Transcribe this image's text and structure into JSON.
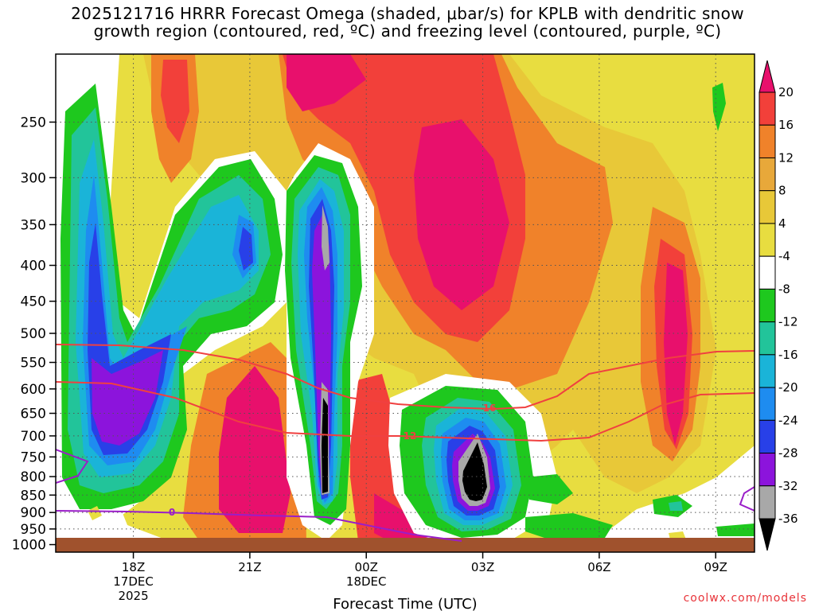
{
  "title": {
    "line1": "2025121716 HRRR Forecast Omega (shaded, μbar/s) for KPLB with dendritic snow",
    "line2": "growth region (contoured, red, ºC) and freezing level (contoured, purple, ºC)"
  },
  "credit": "coolwx.com/models",
  "chart_data": {
    "type": "contour",
    "xlabel": "Forecast Time (UTC)",
    "x_ticks": [
      {
        "value": 18,
        "lines": [
          "18Z",
          "17DEC",
          "2025"
        ]
      },
      {
        "value": 21,
        "lines": [
          "21Z"
        ]
      },
      {
        "value": 24,
        "lines": [
          "00Z",
          "18DEC"
        ]
      },
      {
        "value": 27,
        "lines": [
          "03Z"
        ]
      },
      {
        "value": 30,
        "lines": [
          "06Z"
        ]
      },
      {
        "value": 33,
        "lines": [
          "09Z"
        ]
      }
    ],
    "xlim": [
      16,
      34
    ],
    "y_scale": "log",
    "ylim": [
      1025,
      200
    ],
    "y_ticks": [
      250,
      300,
      350,
      400,
      450,
      500,
      550,
      600,
      650,
      700,
      750,
      800,
      850,
      900,
      950,
      1000
    ],
    "grid": true,
    "colorbar": {
      "levels": [
        20,
        16,
        12,
        8,
        4,
        -4,
        -8,
        -12,
        -16,
        -20,
        -24,
        -28,
        -32,
        -36
      ],
      "colors": [
        "#e8106c",
        "#f2403a",
        "#f0822a",
        "#e8a83a",
        "#e8c838",
        "#e8dd40",
        "#ffffff",
        "#1ec81e",
        "#22c49a",
        "#1ab4d8",
        "#1e8cf0",
        "#2840e8",
        "#8c14dc",
        "#a8a8a8",
        "#000000"
      ]
    },
    "contour_labels": [
      {
        "text": "16",
        "color": "#f04040"
      },
      {
        "text": "12",
        "color": "#f04040"
      },
      {
        "text": "0",
        "color": "#9a1ec8"
      }
    ],
    "surface_color": "#a0522d"
  }
}
